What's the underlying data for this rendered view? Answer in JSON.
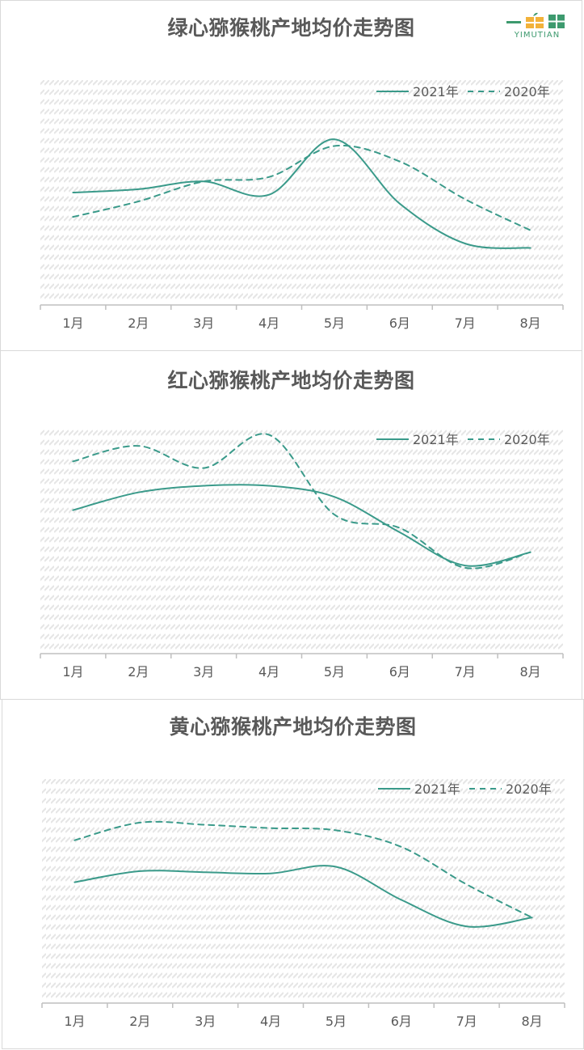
{
  "brand": {
    "logo_text": "YIMUTIAN"
  },
  "colors": {
    "line": "#3a9a8a",
    "axis": "#bfbfbf",
    "text": "#595959",
    "hatch": "#e6e6e6"
  },
  "chart_data": [
    {
      "type": "line",
      "title": "绿心猕猴桃产地均价走势图",
      "categories": [
        "1月",
        "2月",
        "3月",
        "4月",
        "5月",
        "6月",
        "7月",
        "8月"
      ],
      "ylim": [
        0,
        100
      ],
      "grid": false,
      "legend": "top-right",
      "series": [
        {
          "name": "2021年",
          "style": "solid",
          "values": [
            50,
            51.5,
            55,
            49,
            74,
            45,
            27,
            25
          ]
        },
        {
          "name": "2020年",
          "style": "dashed",
          "values": [
            39,
            46,
            55,
            57,
            71,
            64,
            47,
            33
          ]
        }
      ]
    },
    {
      "type": "line",
      "title": "红心猕猴桃产地均价走势图",
      "categories": [
        "1月",
        "2月",
        "3月",
        "4月",
        "5月",
        "6月",
        "7月",
        "8月"
      ],
      "ylim": [
        0,
        100
      ],
      "grid": false,
      "legend": "top-right",
      "series": [
        {
          "name": "2021年",
          "style": "solid",
          "values": [
            64,
            72,
            75,
            75,
            70,
            54,
            39,
            45
          ]
        },
        {
          "name": "2020年",
          "style": "dashed",
          "values": [
            86,
            93,
            83,
            98,
            62,
            56,
            38,
            45
          ]
        }
      ]
    },
    {
      "type": "line",
      "title": "黄心猕猴桃产地均价走势图",
      "categories": [
        "1月",
        "2月",
        "3月",
        "4月",
        "5月",
        "6月",
        "7月",
        "8月"
      ],
      "ylim": [
        0,
        100
      ],
      "grid": false,
      "legend": "top-right",
      "series": [
        {
          "name": "2021年",
          "style": "solid",
          "values": [
            54,
            59,
            58.5,
            58,
            61,
            46,
            34,
            38
          ]
        },
        {
          "name": "2020年",
          "style": "dashed",
          "values": [
            73,
            81,
            80,
            78.5,
            77.5,
            70,
            53,
            38
          ]
        }
      ]
    }
  ]
}
